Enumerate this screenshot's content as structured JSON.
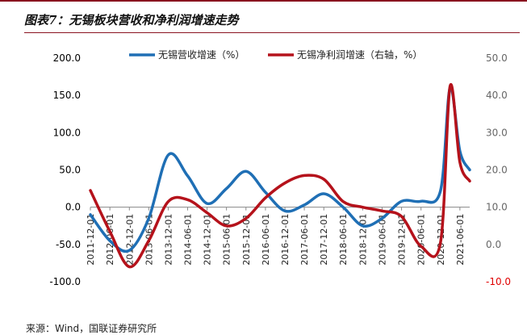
{
  "figure": {
    "title": "图表7：无锡板块营收和净利润增速走势",
    "source": "来源：Wind，国联证券研究所"
  },
  "colors": {
    "revenue": "#1f6fb5",
    "profit": "#b5121b",
    "left_axis_text": "#000000",
    "right_axis_text": "#666666",
    "negative_right_text": "#e00000"
  },
  "chart_data": {
    "type": "line",
    "title": "图表7：无锡板块营收和净利润增速走势",
    "xlabel": "",
    "ylabel": "",
    "categories": [
      "2011-12-01",
      "2012-06-01",
      "2012-12-01",
      "2013-06-01",
      "2013-12-01",
      "2014-06-01",
      "2014-12-01",
      "2015-06-01",
      "2015-12-01",
      "2016-06-01",
      "2016-12-01",
      "2017-06-01",
      "2017-12-01",
      "2018-06-01",
      "2018-12-01",
      "2019-06-01",
      "2019-12-01",
      "2020-06-01",
      "2020-12-01",
      "2021-06-01"
    ],
    "ylim_left": [
      -100,
      200
    ],
    "ylim_right": [
      -10,
      50
    ],
    "yticks_left": [
      "200.0",
      "150.0",
      "100.0",
      "50.0",
      "0.0",
      "-50.0",
      "-100.0"
    ],
    "yticks_right": [
      "50.0",
      "40.0",
      "30.0",
      "20.0",
      "10.0",
      "0.0",
      "-10.0"
    ],
    "legend_position": "top",
    "grid": false,
    "series": [
      {
        "name": "无锡营收增速（%）",
        "axis": "left",
        "x": [
          "2011-12-01",
          "2012-06-01",
          "2012-12-01",
          "2013-06-01",
          "2013-12-01",
          "2014-06-01",
          "2014-12-01",
          "2015-06-01",
          "2015-12-01",
          "2016-06-01",
          "2016-12-01",
          "2017-06-01",
          "2017-12-01",
          "2018-06-01",
          "2018-12-01",
          "2019-06-01",
          "2019-12-01",
          "2020-06-01",
          "2020-12-01",
          "2021-03-01",
          "2021-06-01",
          "2021-09-01"
        ],
        "values": [
          -10,
          -45,
          -58,
          -15,
          70,
          42,
          5,
          25,
          48,
          20,
          -5,
          3,
          18,
          0,
          -25,
          -15,
          8,
          8,
          22,
          160,
          75,
          50
        ]
      },
      {
        "name": "无锡净利润增速（右轴，%）",
        "axis": "right",
        "x": [
          "2011-12-01",
          "2012-06-01",
          "2012-12-01",
          "2013-06-01",
          "2013-12-01",
          "2014-06-01",
          "2014-12-01",
          "2015-06-01",
          "2015-12-01",
          "2016-06-01",
          "2016-12-01",
          "2017-06-01",
          "2017-12-01",
          "2018-06-01",
          "2018-12-01",
          "2019-06-01",
          "2019-12-01",
          "2020-06-01",
          "2020-12-01",
          "2021-03-01",
          "2021-06-01",
          "2021-09-01"
        ],
        "values": [
          14.5,
          3.5,
          -6,
          1,
          11.5,
          12,
          8.5,
          5,
          7,
          12.5,
          16.5,
          18.5,
          17.5,
          11.5,
          10,
          9,
          7.5,
          -0.5,
          0.5,
          42.5,
          22,
          17
        ]
      }
    ]
  }
}
